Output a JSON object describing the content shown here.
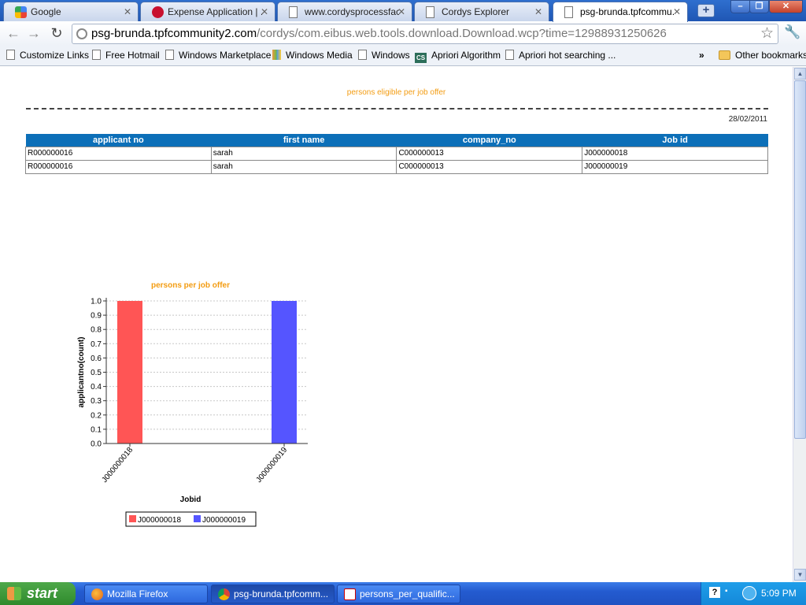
{
  "window": {
    "tabs": [
      {
        "title": "Google",
        "active": false
      },
      {
        "title": "Expense Application | ...",
        "active": false
      },
      {
        "title": "www.cordysprocessfac...",
        "active": false
      },
      {
        "title": "Cordys Explorer",
        "active": false
      },
      {
        "title": "psg-brunda.tpfcommu...",
        "active": true
      }
    ],
    "new_tab": "+",
    "controls": {
      "minimize": "–",
      "maximize": "❐",
      "close": "✕"
    }
  },
  "toolbar": {
    "url_host": "psg-brunda.tpfcommunity2.com",
    "url_path": "/cordys/com.eibus.web.tools.download.Download.wcp?time=12988931250626"
  },
  "bookmarks": {
    "items": [
      "Customize Links",
      "Free Hotmail",
      "Windows Marketplace",
      "Windows Media",
      "Windows",
      "Apriori Algorithm",
      "Apriori hot searching ..."
    ],
    "overflow": "»",
    "other": "Other bookmarks",
    "cs_badge": "CS"
  },
  "report": {
    "title": "persons eligible per job offer",
    "date": "28/02/2011",
    "columns": [
      "applicant no",
      "first name",
      "company_no",
      "Job id"
    ],
    "rows": [
      [
        "R000000016",
        "sarah",
        "C000000013",
        "J000000018"
      ],
      [
        "R000000016",
        "sarah",
        "C000000013",
        "J000000019"
      ]
    ]
  },
  "chart_data": {
    "type": "bar",
    "title": "persons per job offer",
    "xlabel": "Jobid",
    "ylabel": "applicantno(count)",
    "categories": [
      "J000000018",
      "J000000019"
    ],
    "values": [
      1.0,
      1.0
    ],
    "ylim": [
      0,
      1.0
    ],
    "yticks": [
      "0.0",
      "0.1",
      "0.2",
      "0.3",
      "0.4",
      "0.5",
      "0.6",
      "0.7",
      "0.8",
      "0.9",
      "1.0"
    ],
    "colors": [
      "#ff5555",
      "#5555ff"
    ],
    "grid": true,
    "legend": [
      "J000000018",
      "J000000019"
    ],
    "legend_position": "bottom"
  },
  "taskbar": {
    "start": "start",
    "tasks": [
      {
        "label": "Mozilla Firefox",
        "active": false
      },
      {
        "label": "psg-brunda.tpfcomm...",
        "active": true
      },
      {
        "label": "persons_per_qualific...",
        "active": false
      }
    ],
    "clock": "5:09 PM"
  }
}
